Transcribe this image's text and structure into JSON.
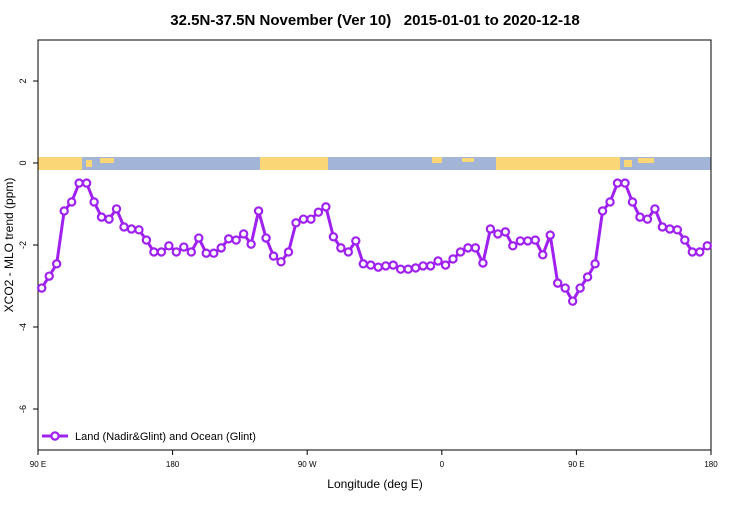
{
  "chart_data": {
    "type": "line",
    "title": "32.5N-37.5N November (Ver 10)   2015-01-01 to 2020-12-18",
    "xlabel": "Longitude (deg E)",
    "ylabel": "XCO2 - MLO trend (ppm)",
    "xlim": [
      90,
      540
    ],
    "ylim": [
      -7,
      3
    ],
    "xticks": [
      {
        "value": 90,
        "label": "90 E"
      },
      180,
      {
        "value": 270,
        "label": "90 W"
      },
      {
        "value": 360,
        "label": "0"
      },
      {
        "value": 450,
        "label": "90 E"
      },
      {
        "value": 540,
        "label": "180"
      }
    ],
    "yticks": [
      -6,
      -4,
      -2,
      0,
      2
    ],
    "legend_position": "bottom-left",
    "x": [
      92.5,
      97.5,
      102.5,
      107.5,
      112.5,
      117.5,
      122.5,
      127.5,
      132.5,
      137.5,
      142.5,
      147.5,
      152.5,
      157.5,
      162.5,
      167.5,
      172.5,
      177.5,
      182.5,
      187.5,
      192.5,
      197.5,
      202.5,
      207.5,
      212.5,
      217.5,
      222.5,
      227.5,
      232.5,
      237.5,
      242.5,
      247.5,
      252.5,
      257.5,
      262.5,
      267.5,
      272.5,
      277.5,
      282.5,
      287.5,
      292.5,
      297.5,
      302.5,
      307.5,
      312.5,
      317.5,
      322.5,
      327.5,
      332.5,
      337.5,
      342.5,
      347.5,
      352.5,
      357.5,
      362.5,
      367.5,
      372.5,
      377.5,
      382.5,
      387.5,
      392.5,
      397.5,
      402.5,
      407.5,
      412.5,
      417.5,
      422.5,
      427.5,
      432.5,
      437.5,
      442.5,
      447.5,
      452.5,
      457.5,
      462.5,
      467.5,
      472.5,
      477.5,
      482.5,
      487.5,
      492.5,
      497.5,
      502.5,
      507.5,
      512.5,
      517.5,
      522.5,
      527.5,
      532.5,
      537.5
    ],
    "series": [
      {
        "name": "Land (Nadir&Glint) and Ocean (Glint)",
        "color": "#a020f0",
        "values": [
          -3.05,
          -2.76,
          -2.46,
          -1.17,
          -0.95,
          -0.49,
          -0.49,
          -0.95,
          -1.32,
          -1.37,
          -1.12,
          -1.56,
          -1.61,
          -1.63,
          -1.88,
          -2.17,
          -2.17,
          -2.02,
          -2.17,
          -2.05,
          -2.17,
          -1.83,
          -2.2,
          -2.2,
          -2.07,
          -1.85,
          -1.88,
          -1.73,
          -1.98,
          -1.17,
          -1.83,
          -2.27,
          -2.41,
          -2.17,
          -1.46,
          -1.37,
          -1.37,
          -1.2,
          -1.07,
          -1.8,
          -2.07,
          -2.17,
          -1.9,
          -2.46,
          -2.49,
          -2.54,
          -2.51,
          -2.49,
          -2.59,
          -2.59,
          -2.56,
          -2.51,
          -2.51,
          -2.39,
          -2.49,
          -2.34,
          -2.17,
          -2.07,
          -2.07,
          -2.44,
          -1.61,
          -1.73,
          -1.68,
          -2.02,
          -1.9,
          -1.9,
          -1.88,
          -2.24,
          -1.76,
          -2.93,
          -3.05,
          -3.37,
          -3.05,
          -2.78,
          -2.46,
          -1.17,
          -0.95,
          -0.49,
          -0.49,
          -0.95,
          -1.32,
          -1.37,
          -1.12,
          -1.56,
          -1.61,
          -1.63,
          -1.88,
          -2.17,
          -2.17,
          -2.02
        ]
      }
    ]
  }
}
